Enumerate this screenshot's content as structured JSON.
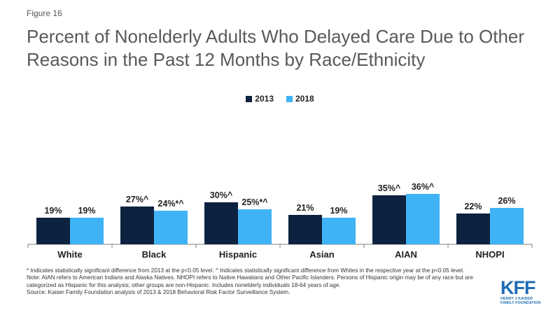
{
  "figure_label": "Figure 16",
  "title": "Percent of Nonelderly Adults Who Delayed Care Due to Other Reasons in the Past 12 Months by Race/Ethnicity",
  "chart_data": {
    "type": "bar",
    "categories": [
      "White",
      "Black",
      "Hispanic",
      "Asian",
      "AIAN",
      "NHOPI"
    ],
    "series": [
      {
        "name": "2013",
        "color": "#0d2240",
        "values": [
          19,
          27,
          30,
          21,
          35,
          22
        ],
        "labels": [
          "19%",
          "27%^",
          "30%^",
          "21%",
          "35%^",
          "22%"
        ]
      },
      {
        "name": "2018",
        "color": "#3fb3f5",
        "values": [
          19,
          24,
          25,
          19,
          36,
          26
        ],
        "labels": [
          "19%",
          "24%*^",
          "25%*^",
          "19%",
          "36%^",
          "26%"
        ]
      }
    ],
    "ylim": [
      0,
      100
    ],
    "grid": false,
    "legend_position": "top-center"
  },
  "notes": [
    "* Indicates statistically significant difference from 2013 at the p<0.05 level. ^ Indicates statistically significant difference from Whites in the respective year at the p<0.05 level.",
    "Note: AIAN  refers to American Indians and Alaska Natives. NHOPI  refers to Native Hawaiians  and Other Pacific Islanders. Persons of Hispanic origin may be of any race but are categorized as Hispanic for this analysis; other groups are non-Hispanic. Includes nonelderly individuals 18-64 years of age.",
    "Source: Kaiser Family Foundation analysis of 2013 & 2018 Behavioral Risk Factor Surveillance System."
  ],
  "logo": {
    "text": "KFF",
    "subtitle_line1": "HENRY J KAISER",
    "subtitle_line2": "FAMILY FOUNDATION",
    "color": "#1f6cb4"
  }
}
